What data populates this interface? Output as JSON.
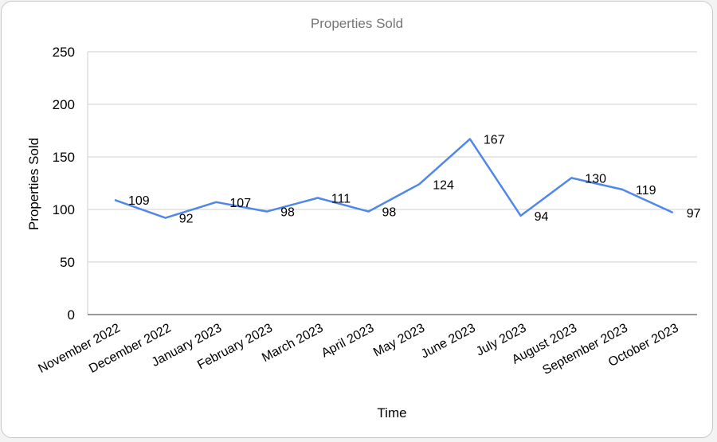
{
  "chart_data": {
    "type": "line",
    "title": "Properties Sold",
    "xlabel": "Time",
    "ylabel": "Properties Sold",
    "categories": [
      "November 2022",
      "December 2022",
      "January 2023",
      "February 2023",
      "March 2023",
      "April 2023",
      "May 2023",
      "June 2023",
      "July 2023",
      "August 2023",
      "September 2023",
      "October 2023"
    ],
    "series": [
      {
        "values": [
          109,
          92,
          107,
          98,
          111,
          98,
          124,
          167,
          94,
          130,
          119,
          97
        ],
        "color": "#5087e8"
      }
    ],
    "ylim": [
      0,
      250
    ],
    "yticks": [
      0,
      50,
      100,
      150,
      200,
      250
    ],
    "grid": true,
    "legend": "none",
    "data_labels": true
  }
}
